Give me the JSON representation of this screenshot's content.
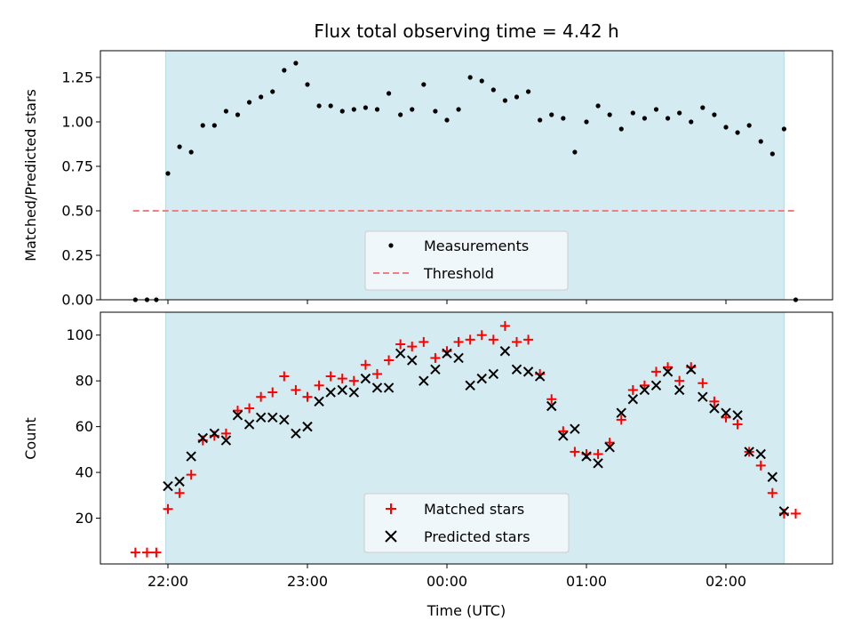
{
  "chart_data": {
    "type": "scatter",
    "title": "Flux total observing time = 4.42 h",
    "xlabel": "Time (UTC)",
    "x_ticks": [
      "22:00",
      "23:00",
      "00:00",
      "01:00",
      "02:00"
    ],
    "colors": {
      "observing_band": "#d3ebf1",
      "band_edge": "#b6dbe5",
      "measurements": "#000000",
      "threshold": "#f08080",
      "matched": "#ff0000",
      "predicted": "#000000"
    },
    "observing_window": {
      "start": "21:59",
      "end": "02:25"
    },
    "top": {
      "ylabel": "Matched/Predicted stars",
      "ylim": [
        0,
        1.4
      ],
      "y_ticks": [
        "0.00",
        "0.25",
        "0.50",
        "0.75",
        "1.00",
        "1.25"
      ],
      "legend_position": "lower-center",
      "legend": {
        "measurements": "Measurements",
        "threshold": "Threshold"
      },
      "threshold": {
        "value": 0.5,
        "x_start": "21:45",
        "x_end": "02:30"
      },
      "measurements": {
        "x": [
          "21:46",
          "21:51",
          "21:55",
          "22:00",
          "22:05",
          "22:10",
          "22:15",
          "22:20",
          "22:25",
          "22:30",
          "22:35",
          "22:40",
          "22:45",
          "22:50",
          "22:55",
          "23:00",
          "23:05",
          "23:10",
          "23:15",
          "23:20",
          "23:25",
          "23:30",
          "23:35",
          "23:40",
          "23:45",
          "23:50",
          "23:55",
          "00:00",
          "00:05",
          "00:10",
          "00:15",
          "00:20",
          "00:25",
          "00:30",
          "00:35",
          "00:40",
          "00:45",
          "00:50",
          "00:55",
          "01:00",
          "01:05",
          "01:10",
          "01:15",
          "01:20",
          "01:25",
          "01:30",
          "01:35",
          "01:40",
          "01:45",
          "01:50",
          "01:55",
          "02:00",
          "02:05",
          "02:10",
          "02:15",
          "02:20",
          "02:25",
          "02:30"
        ],
        "y": [
          0,
          0,
          0,
          0.71,
          0.86,
          0.83,
          0.98,
          0.98,
          1.06,
          1.04,
          1.11,
          1.14,
          1.17,
          1.29,
          1.33,
          1.21,
          1.09,
          1.09,
          1.06,
          1.07,
          1.08,
          1.07,
          1.16,
          1.04,
          1.07,
          1.21,
          1.06,
          1.01,
          1.07,
          1.25,
          1.23,
          1.18,
          1.12,
          1.14,
          1.17,
          1.01,
          1.04,
          1.02,
          0.83,
          1.0,
          1.09,
          1.04,
          0.96,
          1.05,
          1.02,
          1.07,
          1.02,
          1.05,
          1.0,
          1.08,
          1.04,
          0.97,
          0.94,
          0.98,
          0.89,
          0.82,
          0.96,
          0
        ]
      }
    },
    "bottom": {
      "ylabel": "Count",
      "ylim": [
        0,
        110
      ],
      "y_ticks": [
        "20",
        "40",
        "60",
        "80",
        "100"
      ],
      "legend_position": "lower-center",
      "legend": {
        "matched": "Matched stars",
        "predicted": "Predicted stars"
      },
      "matched": {
        "x": [
          "21:46",
          "21:51",
          "21:55",
          "22:00",
          "22:05",
          "22:10",
          "22:15",
          "22:20",
          "22:25",
          "22:30",
          "22:35",
          "22:40",
          "22:45",
          "22:50",
          "22:55",
          "23:00",
          "23:05",
          "23:10",
          "23:15",
          "23:20",
          "23:25",
          "23:30",
          "23:35",
          "23:40",
          "23:45",
          "23:50",
          "23:55",
          "00:00",
          "00:05",
          "00:10",
          "00:15",
          "00:20",
          "00:25",
          "00:30",
          "00:35",
          "00:40",
          "00:45",
          "00:50",
          "00:55",
          "01:00",
          "01:05",
          "01:10",
          "01:15",
          "01:20",
          "01:25",
          "01:30",
          "01:35",
          "01:40",
          "01:45",
          "01:50",
          "01:55",
          "02:00",
          "02:05",
          "02:10",
          "02:15",
          "02:20",
          "02:25",
          "02:30"
        ],
        "y": [
          5,
          5,
          5,
          24,
          31,
          39,
          54,
          56,
          57,
          67,
          68,
          73,
          75,
          82,
          76,
          73,
          78,
          82,
          81,
          80,
          87,
          83,
          89,
          96,
          95,
          97,
          90,
          93,
          97,
          98,
          100,
          98,
          104,
          97,
          98,
          83,
          72,
          58,
          49,
          48,
          48,
          53,
          63,
          76,
          78,
          84,
          86,
          80,
          86,
          79,
          71,
          64,
          61,
          49,
          43,
          31,
          22,
          22
        ]
      },
      "predicted": {
        "x": [
          "22:00",
          "22:05",
          "22:10",
          "22:15",
          "22:20",
          "22:25",
          "22:30",
          "22:35",
          "22:40",
          "22:45",
          "22:50",
          "22:55",
          "23:00",
          "23:05",
          "23:10",
          "23:15",
          "23:20",
          "23:25",
          "23:30",
          "23:35",
          "23:40",
          "23:45",
          "23:50",
          "23:55",
          "00:00",
          "00:05",
          "00:10",
          "00:15",
          "00:20",
          "00:25",
          "00:30",
          "00:35",
          "00:40",
          "00:45",
          "00:50",
          "00:55",
          "01:00",
          "01:05",
          "01:10",
          "01:15",
          "01:20",
          "01:25",
          "01:30",
          "01:35",
          "01:40",
          "01:45",
          "01:50",
          "01:55",
          "02:00",
          "02:05",
          "02:10",
          "02:15",
          "02:20",
          "02:25"
        ],
        "y": [
          34,
          36,
          47,
          55,
          57,
          54,
          65,
          61,
          64,
          64,
          63,
          57,
          60,
          71,
          75,
          76,
          75,
          81,
          77,
          77,
          92,
          89,
          80,
          85,
          92,
          90,
          78,
          81,
          83,
          93,
          85,
          84,
          82,
          69,
          56,
          59,
          47,
          44,
          51,
          66,
          72,
          76,
          78,
          84,
          76,
          85,
          73,
          68,
          66,
          65,
          49,
          48,
          38,
          23
        ]
      }
    }
  }
}
